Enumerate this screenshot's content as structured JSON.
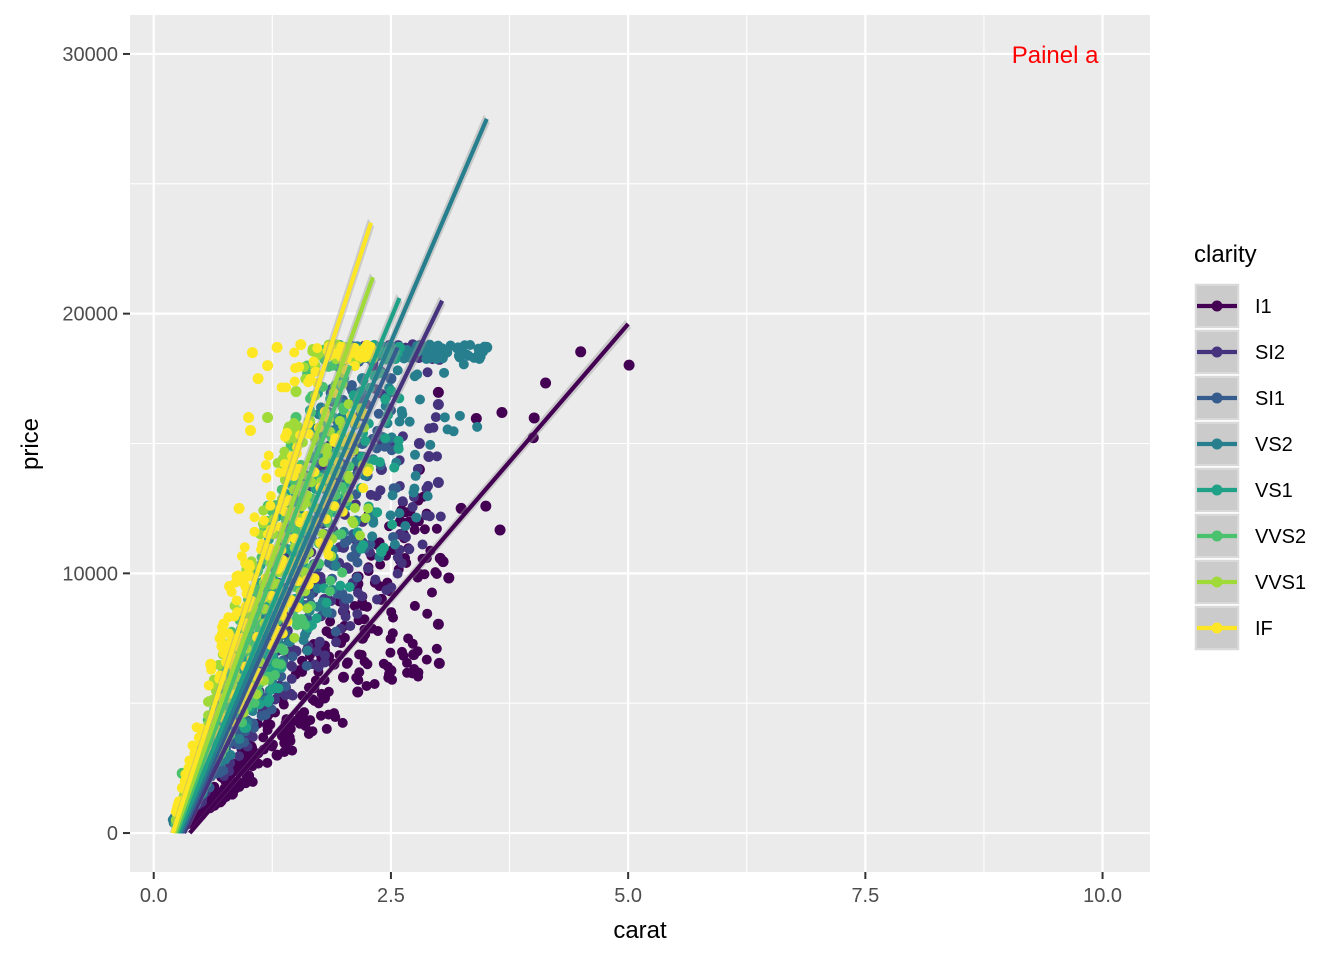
{
  "colors": {
    "I1": "#440154",
    "SI2": "#46337E",
    "SI1": "#365C8D",
    "VS2": "#277F8E",
    "VS1": "#1FA187",
    "VVS2": "#4AC16D",
    "VVS1": "#A0DA39",
    "IF": "#FDE725",
    "panel_bg": "#EBEBEB",
    "grid": "#FFFFFF",
    "annotation": "#FF0000"
  },
  "chart_data": {
    "type": "scatter",
    "xlabel": "carat",
    "ylabel": "price",
    "xlim": [
      -0.25,
      10.5
    ],
    "ylim": [
      -1500,
      31500
    ],
    "x_ticks": [
      "0.0",
      "2.5",
      "5.0",
      "7.5",
      "10.0"
    ],
    "y_ticks": [
      "0",
      "10000",
      "20000",
      "30000"
    ],
    "grid": true,
    "legend": {
      "title": "clarity",
      "position": "right"
    },
    "annotation": {
      "text": "Painel a",
      "x": 9.5,
      "y": 30000,
      "color": "#FF0000"
    },
    "series": [
      {
        "name": "I1",
        "range": [
          0.3,
          5.01
        ],
        "fit": [
          [
            0.38,
            0
          ],
          [
            5.0,
            19600
          ]
        ],
        "points": [
          [
            5.01,
            18018
          ],
          [
            4.5,
            18531
          ],
          [
            4.13,
            17329
          ],
          [
            4.01,
            15984
          ],
          [
            4.0,
            15223
          ],
          [
            3.65,
            11668
          ],
          [
            3.5,
            12587
          ],
          [
            3.4,
            15964
          ],
          [
            3.67,
            16193
          ],
          [
            3.11,
            9823
          ],
          [
            3.05,
            10453
          ],
          [
            3.02,
            10577
          ],
          [
            3.01,
            6535
          ],
          [
            3.0,
            8040
          ],
          [
            2.74,
            6870
          ],
          [
            2.5,
            6256
          ],
          [
            2.27,
            12266
          ],
          [
            2.15,
            5430
          ],
          [
            3.0,
            16970
          ],
          [
            2.8,
            14000
          ],
          [
            2.6,
            10500
          ],
          [
            2.4,
            9000
          ],
          [
            2.0,
            6000
          ],
          [
            1.8,
            5200
          ],
          [
            1.6,
            4300
          ],
          [
            1.3,
            3000
          ],
          [
            1.0,
            2200
          ],
          [
            0.9,
            1800
          ],
          [
            0.7,
            1200
          ],
          [
            0.5,
            700
          ],
          [
            2.2,
            7500
          ],
          [
            1.9,
            6500
          ],
          [
            2.6,
            12000
          ],
          [
            3.24,
            12500
          ]
        ]
      },
      {
        "name": "SI2",
        "range": [
          0.23,
          3.04
        ],
        "fit": [
          [
            0.32,
            0
          ],
          [
            3.04,
            20500
          ]
        ],
        "points": [
          [
            3.04,
            18559
          ],
          [
            3.01,
            18242
          ],
          [
            3.0,
            16500
          ],
          [
            2.8,
            15000
          ],
          [
            2.7,
            18500
          ],
          [
            2.5,
            17000
          ],
          [
            2.4,
            14000
          ],
          [
            2.2,
            12000
          ],
          [
            2.0,
            11000
          ],
          [
            1.8,
            9000
          ],
          [
            1.5,
            7000
          ],
          [
            1.2,
            5000
          ],
          [
            1.0,
            3800
          ],
          [
            0.8,
            2700
          ],
          [
            0.5,
            1200
          ],
          [
            3.0,
            13500
          ],
          [
            2.9,
            14500
          ],
          [
            2.6,
            11500
          ]
        ]
      },
      {
        "name": "SI1",
        "range": [
          0.21,
          2.57
        ],
        "fit": [
          [
            0.3,
            0
          ],
          [
            2.57,
            18700
          ]
        ],
        "points": [
          [
            2.57,
            18700
          ],
          [
            2.5,
            17500
          ],
          [
            2.2,
            15000
          ],
          [
            2.0,
            13500
          ],
          [
            1.8,
            11500
          ],
          [
            1.5,
            9000
          ],
          [
            1.2,
            6500
          ],
          [
            1.0,
            5000
          ],
          [
            0.8,
            3500
          ],
          [
            0.5,
            1600
          ],
          [
            0.3,
            500
          ]
        ]
      },
      {
        "name": "VS2",
        "range": [
          0.2,
          3.51
        ],
        "fit": [
          [
            0.28,
            0
          ],
          [
            3.51,
            27500
          ]
        ],
        "points": [
          [
            3.51,
            18701
          ],
          [
            2.5,
            18700
          ],
          [
            2.2,
            17500
          ],
          [
            2.0,
            16500
          ],
          [
            1.8,
            14500
          ],
          [
            1.5,
            11500
          ],
          [
            1.2,
            8500
          ],
          [
            1.0,
            6500
          ],
          [
            0.8,
            4500
          ],
          [
            0.5,
            2000
          ],
          [
            0.25,
            400
          ]
        ]
      },
      {
        "name": "VS1",
        "range": [
          0.23,
          2.59
        ],
        "fit": [
          [
            0.26,
            0
          ],
          [
            2.59,
            20600
          ]
        ],
        "points": [
          [
            2.59,
            18700
          ],
          [
            2.3,
            18600
          ],
          [
            2.0,
            17500
          ],
          [
            1.8,
            16000
          ],
          [
            1.5,
            13000
          ],
          [
            1.2,
            9500
          ],
          [
            1.0,
            7000
          ],
          [
            0.8,
            5000
          ],
          [
            0.5,
            2200
          ],
          [
            0.3,
            700
          ]
        ]
      },
      {
        "name": "VVS2",
        "range": [
          0.23,
          2.07
        ],
        "fit": [
          [
            0.24,
            0
          ],
          [
            2.07,
            18000
          ]
        ],
        "points": [
          [
            2.07,
            18700
          ],
          [
            1.8,
            18600
          ],
          [
            1.5,
            16000
          ],
          [
            1.2,
            12000
          ],
          [
            1.0,
            9000
          ],
          [
            0.8,
            6000
          ],
          [
            0.5,
            3000
          ],
          [
            0.3,
            2300
          ],
          [
            0.25,
            600
          ]
        ]
      },
      {
        "name": "VVS1",
        "range": [
          0.23,
          2.31
        ],
        "fit": [
          [
            0.22,
            0
          ],
          [
            2.31,
            21400
          ]
        ],
        "points": [
          [
            2.0,
            18700
          ],
          [
            1.7,
            18000
          ],
          [
            1.5,
            17000
          ],
          [
            1.2,
            16000
          ],
          [
            1.0,
            10000
          ],
          [
            0.8,
            7000
          ],
          [
            0.5,
            3500
          ],
          [
            0.3,
            1000
          ]
        ]
      },
      {
        "name": "IF",
        "range": [
          0.23,
          2.29
        ],
        "fit": [
          [
            0.2,
            0
          ],
          [
            2.29,
            23500
          ]
        ],
        "points": [
          [
            1.04,
            18500
          ],
          [
            1.3,
            18700
          ],
          [
            1.55,
            18806
          ],
          [
            1.0,
            16000
          ],
          [
            1.1,
            17500
          ],
          [
            1.2,
            18000
          ],
          [
            0.9,
            12500
          ],
          [
            0.8,
            9500
          ],
          [
            0.7,
            7500
          ],
          [
            0.6,
            6500
          ],
          [
            0.5,
            4000
          ],
          [
            0.3,
            1200
          ],
          [
            1.02,
            15500
          ]
        ]
      }
    ]
  }
}
